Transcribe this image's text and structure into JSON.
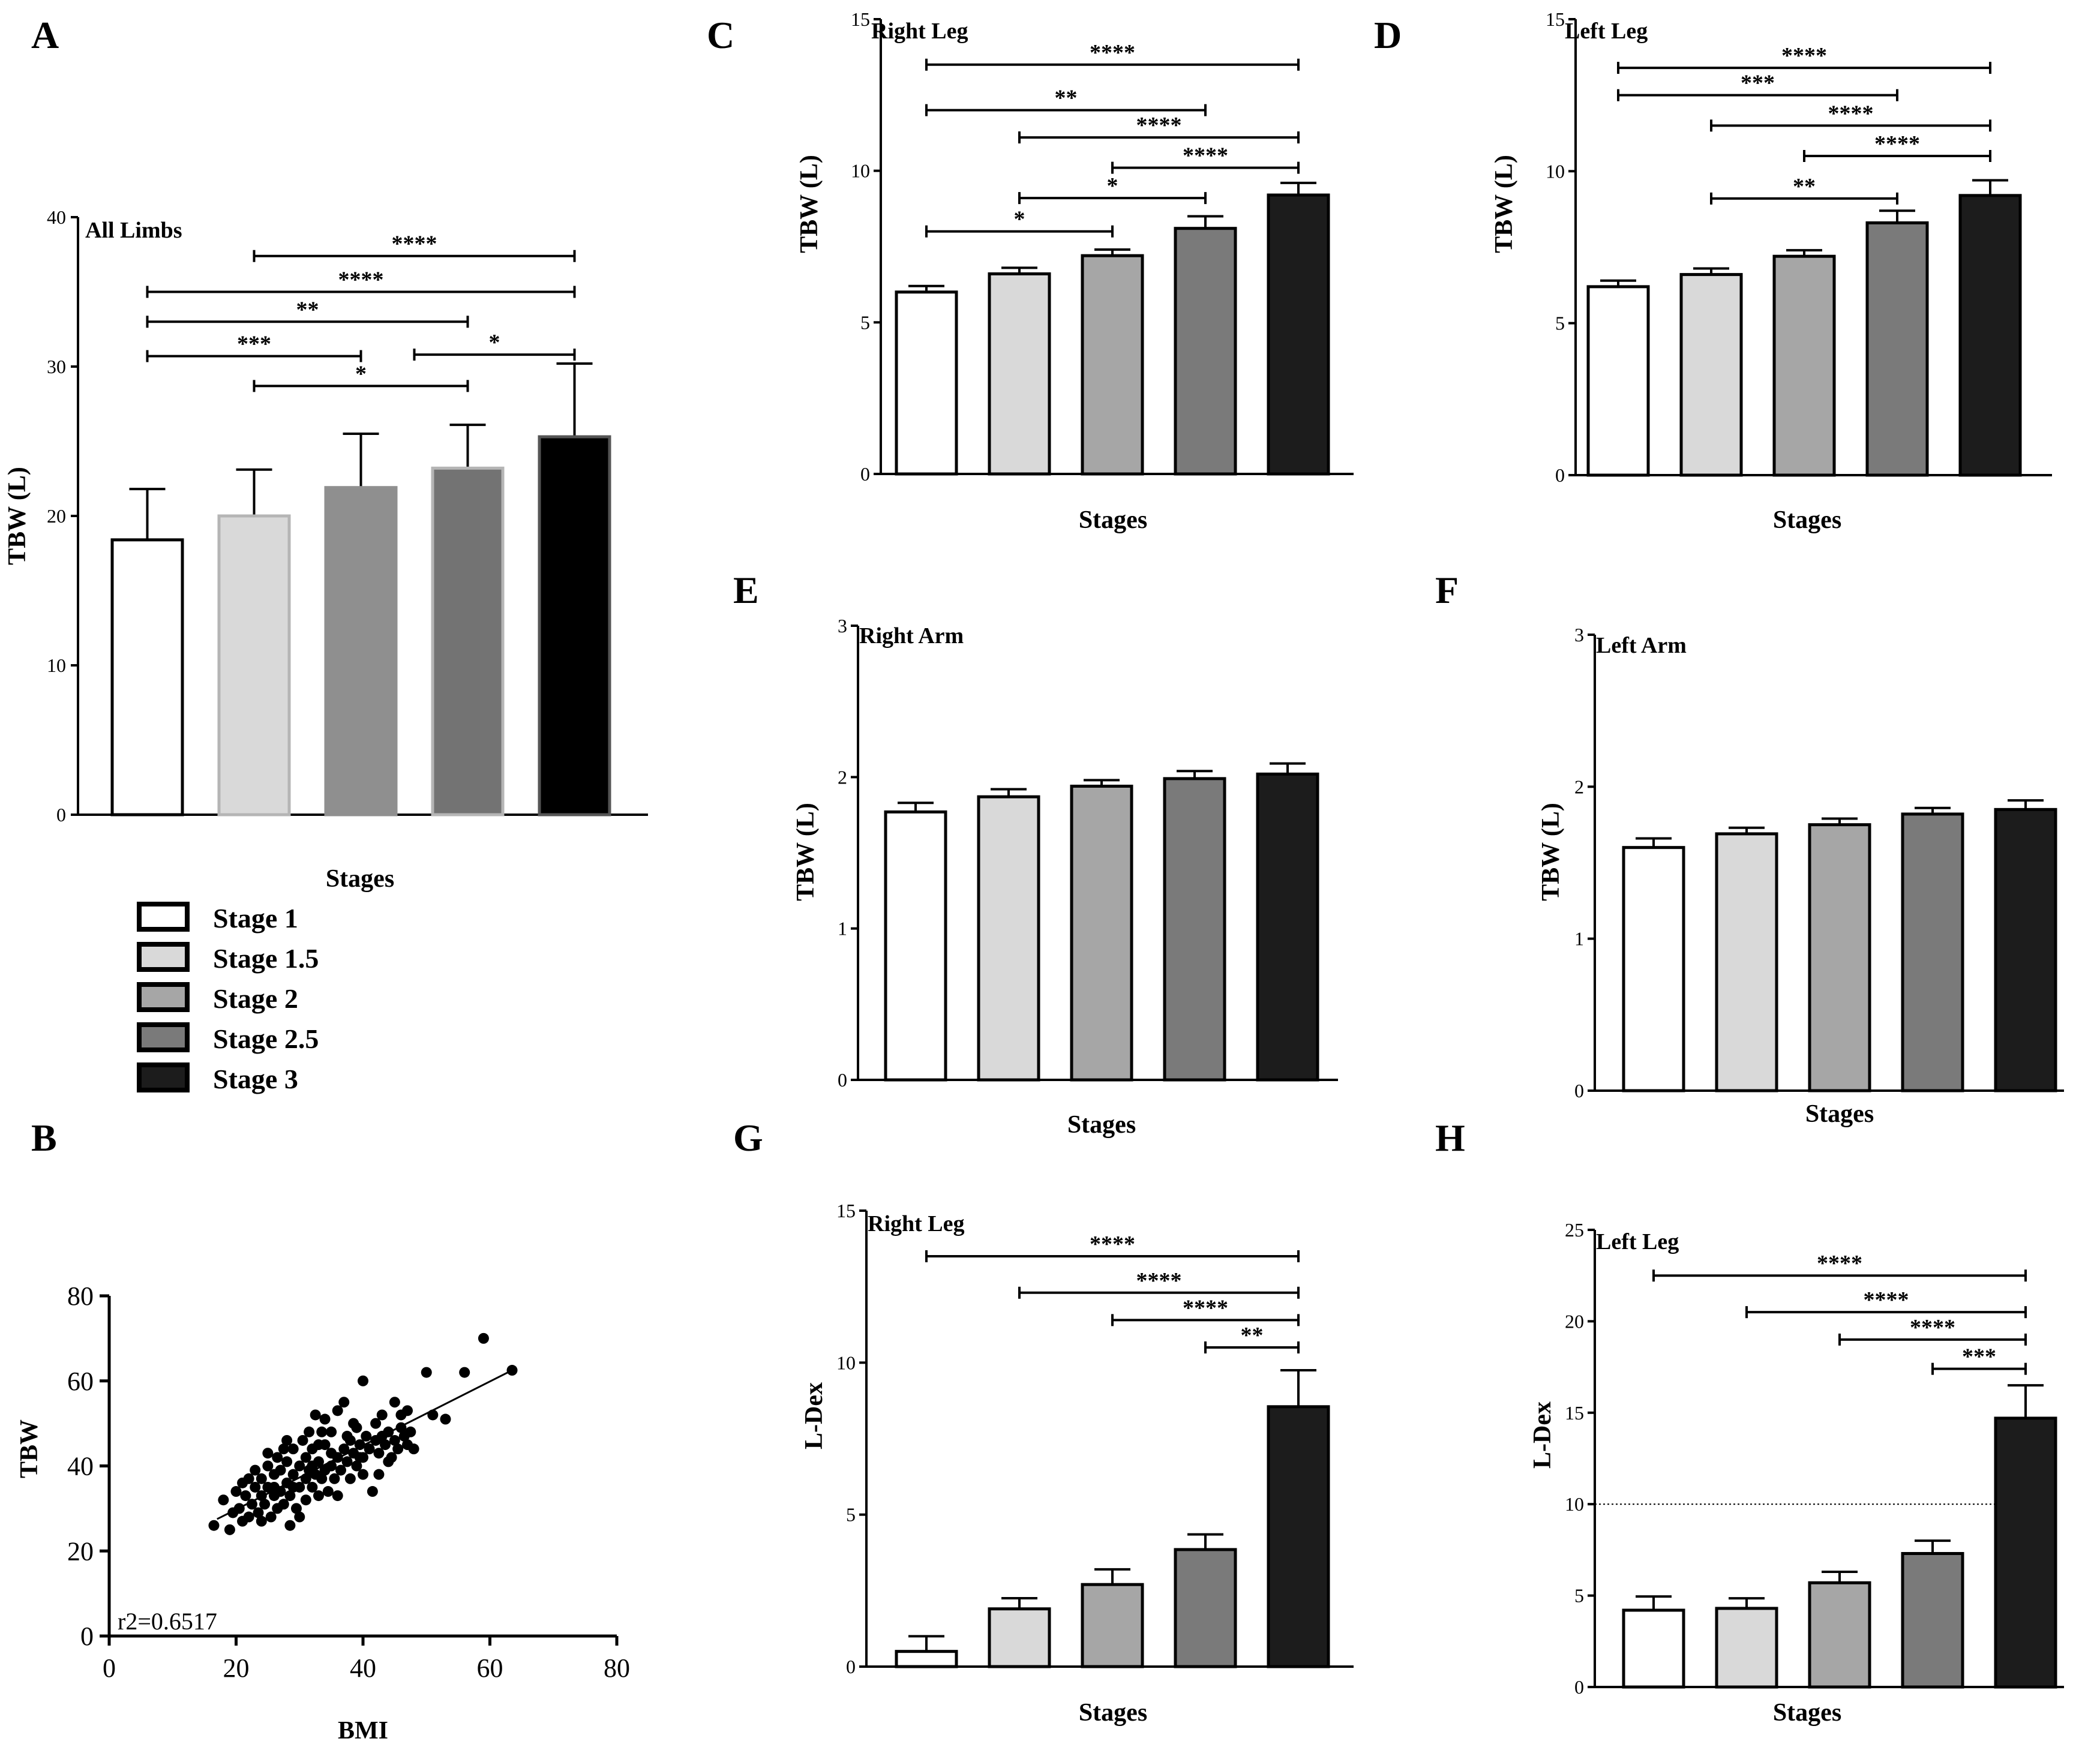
{
  "panel_letters": [
    "A",
    "B",
    "C",
    "D",
    "E",
    "F",
    "G",
    "H"
  ],
  "stage_colors": [
    "#ffffff",
    "#d9d9d9",
    "#a6a6a6",
    "#7a7a7a",
    "#1c1c1c"
  ],
  "legend": {
    "entries": [
      "Stage 1",
      "Stage 1.5",
      "Stage 2",
      "Stage 2.5",
      "Stage 3"
    ]
  },
  "chart_data": [
    {
      "id": "A",
      "type": "bar",
      "title": "All Limbs",
      "xlabel": "Stages",
      "ylabel": "TBW (L)",
      "categories": [
        "Stage 1",
        "Stage 1.5",
        "Stage 2",
        "Stage 2.5",
        "Stage 3"
      ],
      "values": [
        18.4,
        20.0,
        21.9,
        23.2,
        25.3
      ],
      "errors": [
        3.4,
        3.1,
        3.6,
        2.9,
        4.9
      ],
      "bar_colors": [
        "#ffffff",
        "#d9d9d9",
        "#8f8f8f",
        "#737373",
        "#000000"
      ],
      "bar_strokes": [
        "#000000",
        "#b5b5b5",
        "#8f8f8f",
        "#b5b5b5",
        "#555555"
      ],
      "ylim": [
        0,
        40
      ],
      "yticks": [
        0,
        10,
        20,
        30,
        40
      ],
      "significance": [
        {
          "from": 1,
          "to": 4,
          "label": "****",
          "y": 37.4
        },
        {
          "from": 0,
          "to": 4,
          "label": "****",
          "y": 35.0
        },
        {
          "from": 0,
          "to": 3,
          "label": "**",
          "y": 33.0
        },
        {
          "from": 0,
          "to": 2,
          "label": "***",
          "y": 30.7
        },
        {
          "from": 2.5,
          "to": 4,
          "label": "*",
          "y": 30.8
        },
        {
          "from": 1,
          "to": 3,
          "label": "*",
          "y": 28.7
        }
      ]
    },
    {
      "id": "B",
      "type": "scatter",
      "xlabel": "BMI",
      "ylabel": "TBW",
      "xlim": [
        0,
        80
      ],
      "ylim": [
        0,
        80
      ],
      "xticks": [
        0,
        20,
        40,
        60,
        80
      ],
      "yticks": [
        0,
        20,
        40,
        60,
        80
      ],
      "annotation": "r2=0.6517",
      "fit": {
        "x": [
          17,
          63.5
        ],
        "y": [
          27.5,
          62.5
        ]
      },
      "points": [
        [
          16.5,
          26
        ],
        [
          18,
          32
        ],
        [
          19,
          25
        ],
        [
          19.5,
          29
        ],
        [
          20,
          34
        ],
        [
          20.5,
          30
        ],
        [
          21,
          36
        ],
        [
          21.5,
          33
        ],
        [
          22,
          28
        ],
        [
          22,
          37
        ],
        [
          22.5,
          31
        ],
        [
          23,
          35
        ],
        [
          23,
          39
        ],
        [
          23.5,
          29
        ],
        [
          24,
          33
        ],
        [
          24,
          37
        ],
        [
          24.5,
          31
        ],
        [
          25,
          35
        ],
        [
          25,
          40
        ],
        [
          25.5,
          28
        ],
        [
          26,
          33
        ],
        [
          26,
          38
        ],
        [
          26.5,
          30
        ],
        [
          26.5,
          42
        ],
        [
          27,
          34
        ],
        [
          27,
          39
        ],
        [
          27.5,
          31
        ],
        [
          28,
          36
        ],
        [
          28,
          41
        ],
        [
          28.5,
          26
        ],
        [
          28.5,
          33
        ],
        [
          29,
          38
        ],
        [
          29,
          44
        ],
        [
          29.5,
          30
        ],
        [
          30,
          35
        ],
        [
          30,
          40
        ],
        [
          30.5,
          46
        ],
        [
          31,
          32
        ],
        [
          31,
          37
        ],
        [
          31,
          42
        ],
        [
          31.5,
          39
        ],
        [
          32,
          35
        ],
        [
          32,
          44
        ],
        [
          32.5,
          38
        ],
        [
          32.5,
          52
        ],
        [
          33,
          33
        ],
        [
          33,
          41
        ],
        [
          33.5,
          37
        ],
        [
          34,
          39
        ],
        [
          34,
          45
        ],
        [
          34.5,
          34
        ],
        [
          35,
          40
        ],
        [
          35,
          48
        ],
        [
          35.5,
          37
        ],
        [
          36,
          42
        ],
        [
          36,
          53
        ],
        [
          36.5,
          39
        ],
        [
          37,
          44
        ],
        [
          37,
          55
        ],
        [
          37.5,
          41
        ],
        [
          38,
          37
        ],
        [
          38,
          46
        ],
        [
          38.5,
          43
        ],
        [
          39,
          40
        ],
        [
          39,
          49
        ],
        [
          39.5,
          45
        ],
        [
          40,
          42
        ],
        [
          40,
          60
        ],
        [
          40.5,
          47
        ],
        [
          41,
          44
        ],
        [
          41.5,
          34
        ],
        [
          42,
          46
        ],
        [
          42,
          50
        ],
        [
          42.5,
          43
        ],
        [
          43,
          47
        ],
        [
          43.5,
          45
        ],
        [
          44,
          48
        ],
        [
          44.5,
          42
        ],
        [
          45,
          46
        ],
        [
          45.5,
          44
        ],
        [
          46,
          49
        ],
        [
          46,
          52
        ],
        [
          46.5,
          47
        ],
        [
          47,
          45
        ],
        [
          47,
          53
        ],
        [
          47.5,
          48
        ],
        [
          48,
          44
        ],
        [
          50,
          62
        ],
        [
          51,
          52
        ],
        [
          53,
          51
        ],
        [
          56,
          62
        ],
        [
          59,
          70
        ],
        [
          63.5,
          62.5
        ],
        [
          33.5,
          48
        ],
        [
          28,
          46
        ],
        [
          36,
          33
        ],
        [
          42.5,
          38
        ],
        [
          25,
          43
        ],
        [
          30,
          28
        ],
        [
          34,
          51
        ],
        [
          38.5,
          50
        ],
        [
          44,
          41
        ],
        [
          21,
          27
        ],
        [
          27.5,
          44
        ],
        [
          31.5,
          48
        ],
        [
          35,
          43
        ],
        [
          40,
          38
        ],
        [
          29,
          35
        ],
        [
          33,
          45
        ],
        [
          37.5,
          47
        ],
        [
          26,
          35
        ],
        [
          24,
          27
        ],
        [
          32,
          40
        ],
        [
          39.5,
          42
        ],
        [
          43,
          52
        ],
        [
          45,
          55
        ]
      ]
    },
    {
      "id": "C",
      "type": "bar",
      "title": "Right Leg",
      "xlabel": "Stages",
      "ylabel": "TBW (L)",
      "categories": [
        "Stage 1",
        "Stage 1.5",
        "Stage 2",
        "Stage 2.5",
        "Stage 3"
      ],
      "values": [
        6.0,
        6.6,
        7.2,
        8.1,
        9.2
      ],
      "errors": [
        0.2,
        0.2,
        0.2,
        0.4,
        0.4
      ],
      "ylim": [
        0,
        15
      ],
      "yticks": [
        0,
        5,
        10,
        15
      ],
      "significance": [
        {
          "from": 0,
          "to": 4,
          "label": "****",
          "y": 13.5
        },
        {
          "from": 0,
          "to": 3,
          "label": "**",
          "y": 12.0
        },
        {
          "from": 1,
          "to": 4,
          "label": "****",
          "y": 11.1
        },
        {
          "from": 2,
          "to": 4,
          "label": "****",
          "y": 10.1
        },
        {
          "from": 1,
          "to": 3,
          "label": "*",
          "y": 9.1
        },
        {
          "from": 0,
          "to": 2,
          "label": "*",
          "y": 8.0
        }
      ]
    },
    {
      "id": "D",
      "type": "bar",
      "title": "Left Leg",
      "xlabel": "Stages",
      "ylabel": "TBW (L)",
      "categories": [
        "Stage 1",
        "Stage 1.5",
        "Stage 2",
        "Stage 2.5",
        "Stage 3"
      ],
      "values": [
        6.2,
        6.6,
        7.2,
        8.3,
        9.2
      ],
      "errors": [
        0.2,
        0.2,
        0.2,
        0.4,
        0.5
      ],
      "ylim": [
        0,
        15
      ],
      "yticks": [
        0,
        5,
        10,
        15
      ],
      "significance": [
        {
          "from": 0,
          "to": 4,
          "label": "****",
          "y": 13.4
        },
        {
          "from": 0,
          "to": 3,
          "label": "***",
          "y": 12.5
        },
        {
          "from": 1,
          "to": 4,
          "label": "****",
          "y": 11.5
        },
        {
          "from": 2,
          "to": 4,
          "label": "****",
          "y": 10.5
        },
        {
          "from": 1,
          "to": 3,
          "label": "**",
          "y": 9.1
        }
      ]
    },
    {
      "id": "E",
      "type": "bar",
      "title": "Right Arm",
      "xlabel": "Stages",
      "ylabel": "TBW (L)",
      "categories": [
        "Stage 1",
        "Stage 1.5",
        "Stage 2",
        "Stage 2.5",
        "Stage 3"
      ],
      "values": [
        1.77,
        1.87,
        1.94,
        1.99,
        2.02
      ],
      "errors": [
        0.06,
        0.05,
        0.04,
        0.05,
        0.07
      ],
      "ylim": [
        0,
        3
      ],
      "yticks": [
        0,
        1,
        2,
        3
      ],
      "significance": []
    },
    {
      "id": "F",
      "type": "bar",
      "title": "Left Arm",
      "xlabel": "Stages",
      "ylabel": "TBW (L)",
      "categories": [
        "Stage 1",
        "Stage 1.5",
        "Stage 2",
        "Stage 2.5",
        "Stage 3"
      ],
      "values": [
        1.6,
        1.69,
        1.75,
        1.82,
        1.85
      ],
      "errors": [
        0.06,
        0.04,
        0.04,
        0.04,
        0.06
      ],
      "ylim": [
        0,
        3
      ],
      "yticks": [
        0,
        1,
        2,
        3
      ],
      "significance": []
    },
    {
      "id": "G",
      "type": "bar",
      "title": "Right  Leg",
      "xlabel": "Stages",
      "ylabel": "L-Dex",
      "categories": [
        "Stage 1",
        "Stage 1.5",
        "Stage 2",
        "Stage 2.5",
        "Stage 3"
      ],
      "values": [
        0.5,
        1.9,
        2.7,
        3.85,
        8.55
      ],
      "errors": [
        0.5,
        0.35,
        0.5,
        0.5,
        1.2
      ],
      "ylim": [
        0,
        15
      ],
      "yticks": [
        0,
        5,
        10,
        15
      ],
      "significance": [
        {
          "from": 0,
          "to": 4,
          "label": "****",
          "y": 13.5
        },
        {
          "from": 1,
          "to": 4,
          "label": "****",
          "y": 12.3
        },
        {
          "from": 2,
          "to": 4,
          "label": "****",
          "y": 11.4
        },
        {
          "from": 3,
          "to": 4,
          "label": "**",
          "y": 10.5
        }
      ]
    },
    {
      "id": "H",
      "type": "bar",
      "title": "Left Leg",
      "xlabel": "Stages",
      "ylabel": "L-Dex",
      "categories": [
        "Stage 1",
        "Stage 1.5",
        "Stage 2",
        "Stage 2.5",
        "Stage 3"
      ],
      "values": [
        4.2,
        4.3,
        5.7,
        7.3,
        14.7
      ],
      "errors": [
        0.75,
        0.55,
        0.6,
        0.7,
        1.8
      ],
      "ylim": [
        0,
        25
      ],
      "yticks": [
        0,
        5,
        10,
        15,
        20,
        25
      ],
      "reference_line": 10,
      "significance": [
        {
          "from": 0,
          "to": 4,
          "label": "****",
          "y": 22.5
        },
        {
          "from": 1,
          "to": 4,
          "label": "****",
          "y": 20.5
        },
        {
          "from": 2,
          "to": 4,
          "label": "****",
          "y": 19.0
        },
        {
          "from": 3,
          "to": 4,
          "label": "***",
          "y": 17.4
        }
      ]
    }
  ]
}
